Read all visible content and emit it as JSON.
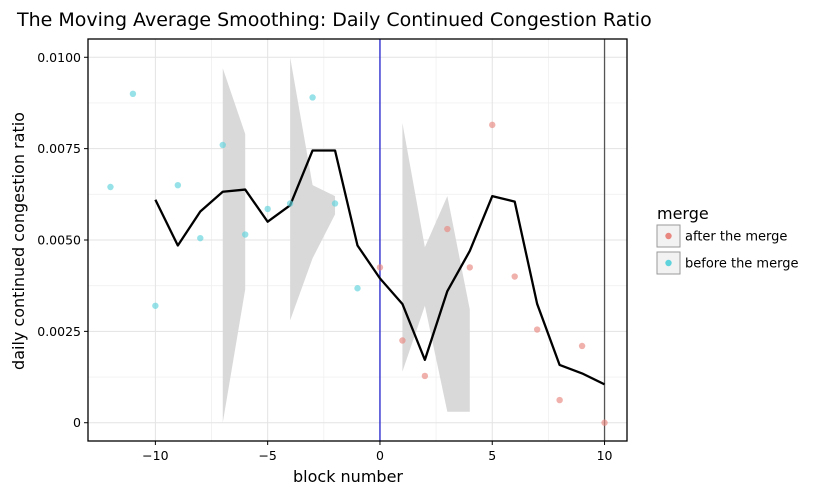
{
  "chart_data": {
    "type": "scatter",
    "title": "The Moving Average Smoothing: Daily Continued Congestion Ratio",
    "xlabel": "block number",
    "ylabel": "daily continued congestion ratio",
    "xlim": [
      -13,
      11
    ],
    "ylim": [
      -0.0005,
      0.0105
    ],
    "x_ticks": [
      -10,
      -5,
      0,
      5,
      10
    ],
    "x_tick_labels": [
      "−10",
      "−5",
      "0",
      "5",
      "10"
    ],
    "y_ticks": [
      0,
      0.0025,
      0.005,
      0.0075,
      0.01
    ],
    "y_tick_labels": [
      "0",
      "0.0025",
      "0.0050",
      "0.0075",
      "0.0100"
    ],
    "grid": true,
    "legend": {
      "title": "merge",
      "position": "right",
      "entries": [
        {
          "label": "after the merge",
          "color": "#e8877f"
        },
        {
          "label": "before the merge",
          "color": "#5fd3dc"
        }
      ]
    },
    "vertical_lines": [
      {
        "x": 0,
        "color": "#2222cc"
      },
      {
        "x": 10,
        "color": "#555555"
      }
    ],
    "series": [
      {
        "name": "before the merge",
        "kind": "points",
        "color": "#5fd3dc",
        "x": [
          -12,
          -11,
          -10,
          -9,
          -8,
          -7,
          -6,
          -5,
          -4,
          -3,
          -2,
          -1
        ],
        "y": [
          0.00645,
          0.009,
          0.0032,
          0.0065,
          0.00505,
          0.0076,
          0.00515,
          0.00585,
          0.006,
          0.0089,
          0.006,
          0.00368
        ]
      },
      {
        "name": "after the merge",
        "kind": "points",
        "color": "#e8877f",
        "x": [
          0,
          1,
          2,
          3,
          4,
          5,
          6,
          7,
          8,
          9,
          10
        ],
        "y": [
          0.00425,
          0.00225,
          0.00128,
          0.0053,
          0.00425,
          0.00815,
          0.004,
          0.00255,
          0.00062,
          0.0021,
          0.0
        ]
      },
      {
        "name": "moving average",
        "kind": "line",
        "color": "#000000",
        "x": [
          -10,
          -9,
          -8,
          -7,
          -6,
          -5,
          -4,
          -3,
          -2,
          -1,
          0,
          1,
          2,
          3,
          4,
          5,
          6,
          7,
          8,
          9,
          10
        ],
        "y": [
          0.0061,
          0.00485,
          0.00578,
          0.00632,
          0.00638,
          0.0055,
          0.00595,
          0.00745,
          0.00745,
          0.00485,
          0.00395,
          0.00325,
          0.00172,
          0.0036,
          0.0047,
          0.0062,
          0.00605,
          0.00325,
          0.00158,
          0.00135,
          0.00105
        ]
      }
    ],
    "bands": [
      {
        "x": [
          -7,
          -6
        ],
        "lower": [
          0.0,
          0.00365
        ],
        "upper": [
          0.0097,
          0.0079
        ],
        "color": "#d9d9d9"
      },
      {
        "x": [
          -4,
          -3,
          -2
        ],
        "lower": [
          0.0028,
          0.0045,
          0.0057
        ],
        "upper": [
          0.01,
          0.0065,
          0.0062
        ],
        "color": "#d9d9d9"
      },
      {
        "x": [
          1,
          2,
          3,
          4
        ],
        "lower": [
          0.0014,
          0.0032,
          0.0003,
          0.0003
        ],
        "upper": [
          0.0082,
          0.0048,
          0.0062,
          0.0031
        ],
        "color": "#d9d9d9"
      }
    ]
  }
}
